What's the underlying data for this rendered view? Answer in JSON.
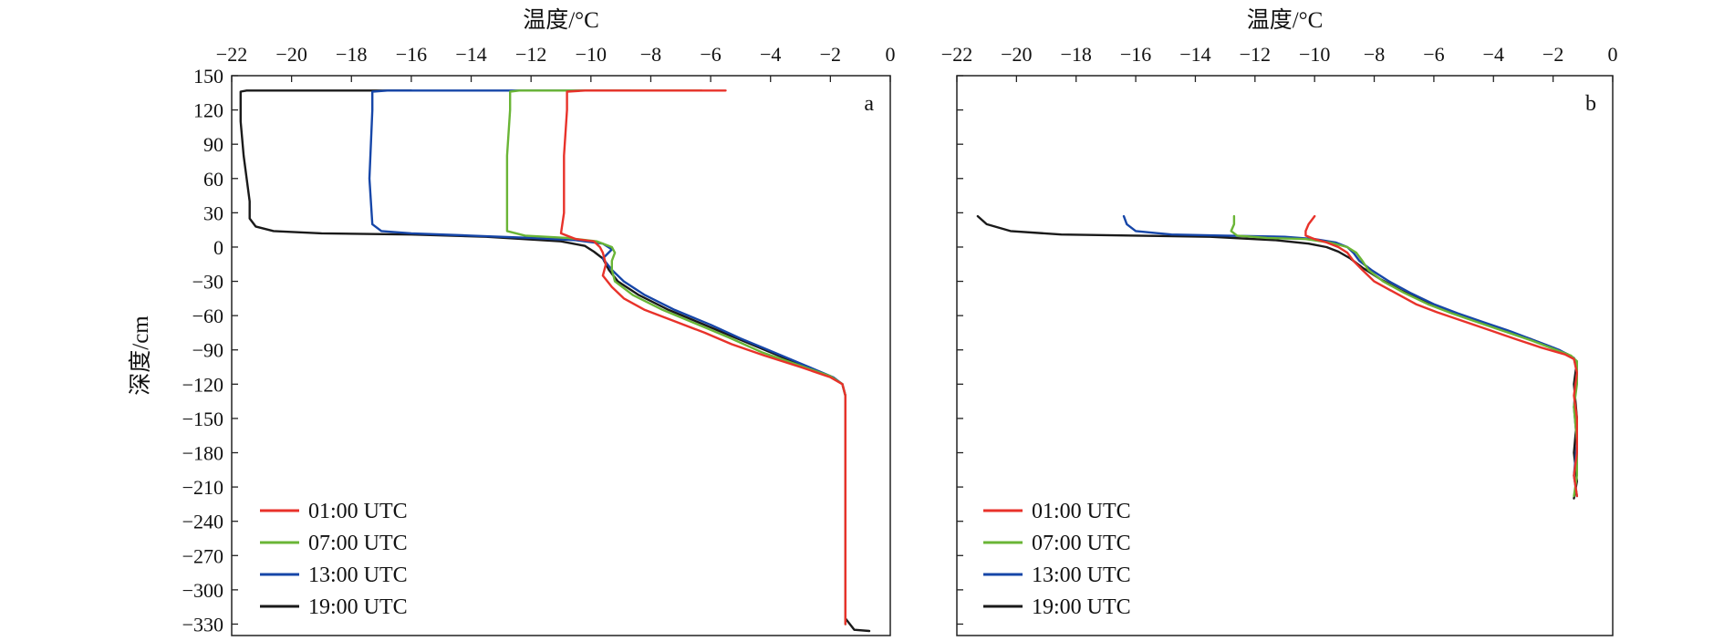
{
  "chart_data": [
    {
      "type": "line",
      "panel_label": "a",
      "xlabel": "温度/°C",
      "ylabel": "深度/cm",
      "xlim": [
        -22,
        0
      ],
      "ylim": [
        -340,
        150
      ],
      "xticks": [
        -22,
        -20,
        -18,
        -16,
        -14,
        -12,
        -10,
        -8,
        -6,
        -4,
        -2,
        0
      ],
      "yticks": [
        150,
        120,
        90,
        60,
        30,
        0,
        -30,
        -60,
        -90,
        -120,
        -150,
        -180,
        -210,
        -240,
        -270,
        -300,
        -330
      ],
      "x_axis_position": "top",
      "legend_position": "bottom-left",
      "legend": [
        "01:00 UTC",
        "07:00 UTC",
        "13:00 UTC",
        "19:00 UTC"
      ],
      "series": [
        {
          "name": "01:00 UTC",
          "color": "#e8322a",
          "points": [
            [
              -5.5,
              137
            ],
            [
              -8.5,
              137
            ],
            [
              -10.2,
              137
            ],
            [
              -10.8,
              136
            ],
            [
              -10.8,
              120
            ],
            [
              -10.9,
              80
            ],
            [
              -10.9,
              30
            ],
            [
              -11.0,
              12
            ],
            [
              -10.5,
              7
            ],
            [
              -9.9,
              5
            ],
            [
              -9.7,
              0
            ],
            [
              -9.6,
              -5
            ],
            [
              -9.5,
              -15
            ],
            [
              -9.6,
              -25
            ],
            [
              -9.3,
              -35
            ],
            [
              -8.9,
              -45
            ],
            [
              -8.2,
              -55
            ],
            [
              -7.2,
              -65
            ],
            [
              -6.2,
              -75
            ],
            [
              -5.3,
              -85
            ],
            [
              -4.2,
              -95
            ],
            [
              -3.0,
              -105
            ],
            [
              -2.0,
              -114
            ],
            [
              -1.6,
              -120
            ],
            [
              -1.5,
              -130
            ],
            [
              -1.5,
              -180
            ],
            [
              -1.5,
              -240
            ],
            [
              -1.5,
              -330
            ]
          ]
        },
        {
          "name": "07:00 UTC",
          "color": "#6ab536",
          "points": [
            [
              -6.3,
              137
            ],
            [
              -9.5,
              137
            ],
            [
              -12.4,
              137
            ],
            [
              -12.7,
              136
            ],
            [
              -12.7,
              120
            ],
            [
              -12.8,
              80
            ],
            [
              -12.8,
              30
            ],
            [
              -12.8,
              14
            ],
            [
              -12.2,
              10
            ],
            [
              -10.8,
              8
            ],
            [
              -9.8,
              5
            ],
            [
              -9.3,
              0
            ],
            [
              -9.2,
              -5
            ],
            [
              -9.3,
              -12
            ],
            [
              -9.3,
              -20
            ],
            [
              -9.2,
              -30
            ],
            [
              -8.6,
              -42
            ],
            [
              -7.6,
              -55
            ],
            [
              -6.5,
              -67
            ],
            [
              -5.4,
              -79
            ],
            [
              -4.3,
              -92
            ],
            [
              -3.1,
              -103
            ],
            [
              -2.0,
              -113
            ],
            [
              -1.6,
              -120
            ],
            [
              -1.5,
              -130
            ],
            [
              -1.5,
              -240
            ],
            [
              -1.5,
              -330
            ]
          ]
        },
        {
          "name": "13:00 UTC",
          "color": "#1646a8",
          "points": [
            [
              -8.7,
              137
            ],
            [
              -12.5,
              137
            ],
            [
              -16.8,
              137
            ],
            [
              -17.3,
              136
            ],
            [
              -17.3,
              120
            ],
            [
              -17.4,
              60
            ],
            [
              -17.3,
              20
            ],
            [
              -17.0,
              14
            ],
            [
              -16.0,
              12
            ],
            [
              -14.0,
              10
            ],
            [
              -12.0,
              8
            ],
            [
              -10.5,
              6
            ],
            [
              -9.6,
              3
            ],
            [
              -9.3,
              -2
            ],
            [
              -9.6,
              -10
            ],
            [
              -9.3,
              -20
            ],
            [
              -8.9,
              -30
            ],
            [
              -8.2,
              -42
            ],
            [
              -7.2,
              -55
            ],
            [
              -6.0,
              -68
            ],
            [
              -5.0,
              -80
            ],
            [
              -3.9,
              -92
            ],
            [
              -2.8,
              -104
            ],
            [
              -1.9,
              -114
            ],
            [
              -1.6,
              -120
            ],
            [
              -1.5,
              -130
            ],
            [
              -1.5,
              -240
            ],
            [
              -1.5,
              -330
            ]
          ]
        },
        {
          "name": "19:00 UTC",
          "color": "#1a1a1a",
          "points": [
            [
              -16.0,
              137
            ],
            [
              -21.5,
              137
            ],
            [
              -21.7,
              136
            ],
            [
              -21.7,
              110
            ],
            [
              -21.6,
              80
            ],
            [
              -21.4,
              40
            ],
            [
              -21.4,
              25
            ],
            [
              -21.2,
              18
            ],
            [
              -20.6,
              14
            ],
            [
              -19.0,
              12
            ],
            [
              -16.0,
              11
            ],
            [
              -13.5,
              9
            ],
            [
              -11.0,
              5
            ],
            [
              -10.2,
              1
            ],
            [
              -9.9,
              -4
            ],
            [
              -9.6,
              -10
            ],
            [
              -9.4,
              -20
            ],
            [
              -9.1,
              -30
            ],
            [
              -8.4,
              -42
            ],
            [
              -7.4,
              -55
            ],
            [
              -6.3,
              -67
            ],
            [
              -5.2,
              -79
            ],
            [
              -4.1,
              -91
            ],
            [
              -3.0,
              -103
            ],
            [
              -2.0,
              -113
            ],
            [
              -1.6,
              -120
            ],
            [
              -1.5,
              -130
            ],
            [
              -1.5,
              -240
            ],
            [
              -1.5,
              -325
            ],
            [
              -1.2,
              -335
            ],
            [
              -0.7,
              -336
            ]
          ]
        }
      ]
    },
    {
      "type": "line",
      "panel_label": "b",
      "xlabel": "温度/°C",
      "ylabel": "",
      "xlim": [
        -22,
        0
      ],
      "ylim": [
        -340,
        150
      ],
      "xticks": [
        -22,
        -20,
        -18,
        -16,
        -14,
        -12,
        -10,
        -8,
        -6,
        -4,
        -2,
        0
      ],
      "yticks": [
        150,
        120,
        90,
        60,
        30,
        0,
        -30,
        -60,
        -90,
        -120,
        -150,
        -180,
        -210,
        -240,
        -270,
        -300,
        -330
      ],
      "x_axis_position": "top",
      "legend_position": "bottom-left",
      "legend": [
        "01:00 UTC",
        "07:00 UTC",
        "13:00 UTC",
        "19:00 UTC"
      ],
      "series": [
        {
          "name": "01:00 UTC",
          "color": "#e8322a",
          "points": [
            [
              -10.0,
              27
            ],
            [
              -10.2,
              20
            ],
            [
              -10.3,
              14
            ],
            [
              -10.3,
              10
            ],
            [
              -10.0,
              7
            ],
            [
              -9.6,
              4
            ],
            [
              -9.2,
              0
            ],
            [
              -8.9,
              -5
            ],
            [
              -8.7,
              -12
            ],
            [
              -8.4,
              -20
            ],
            [
              -8.0,
              -30
            ],
            [
              -7.3,
              -40
            ],
            [
              -6.6,
              -50
            ],
            [
              -5.9,
              -57
            ],
            [
              -5.0,
              -65
            ],
            [
              -4.1,
              -73
            ],
            [
              -3.2,
              -81
            ],
            [
              -2.4,
              -88
            ],
            [
              -1.6,
              -94
            ],
            [
              -1.3,
              -98
            ],
            [
              -1.2,
              -110
            ],
            [
              -1.3,
              -130
            ],
            [
              -1.2,
              -150
            ],
            [
              -1.2,
              -180
            ],
            [
              -1.3,
              -200
            ],
            [
              -1.2,
              -218
            ]
          ]
        },
        {
          "name": "07:00 UTC",
          "color": "#6ab536",
          "points": [
            [
              -12.7,
              27
            ],
            [
              -12.7,
              20
            ],
            [
              -12.8,
              14
            ],
            [
              -12.6,
              10
            ],
            [
              -11.6,
              8
            ],
            [
              -10.3,
              7
            ],
            [
              -9.5,
              4
            ],
            [
              -8.9,
              0
            ],
            [
              -8.6,
              -5
            ],
            [
              -8.4,
              -12
            ],
            [
              -8.2,
              -20
            ],
            [
              -7.7,
              -30
            ],
            [
              -7.0,
              -40
            ],
            [
              -6.2,
              -50
            ],
            [
              -5.4,
              -58
            ],
            [
              -4.5,
              -66
            ],
            [
              -3.6,
              -74
            ],
            [
              -2.7,
              -82
            ],
            [
              -2.0,
              -89
            ],
            [
              -1.4,
              -95
            ],
            [
              -1.2,
              -100
            ],
            [
              -1.2,
              -120
            ],
            [
              -1.3,
              -140
            ],
            [
              -1.2,
              -170
            ],
            [
              -1.2,
              -200
            ],
            [
              -1.3,
              -218
            ]
          ]
        },
        {
          "name": "13:00 UTC",
          "color": "#1646a8",
          "points": [
            [
              -16.4,
              27
            ],
            [
              -16.3,
              20
            ],
            [
              -16.0,
              14
            ],
            [
              -14.8,
              11
            ],
            [
              -13.0,
              10
            ],
            [
              -11.0,
              9
            ],
            [
              -10.0,
              7
            ],
            [
              -9.3,
              4
            ],
            [
              -8.9,
              0
            ],
            [
              -8.7,
              -5
            ],
            [
              -8.5,
              -12
            ],
            [
              -8.1,
              -20
            ],
            [
              -7.5,
              -30
            ],
            [
              -6.8,
              -40
            ],
            [
              -6.0,
              -50
            ],
            [
              -5.2,
              -58
            ],
            [
              -4.3,
              -66
            ],
            [
              -3.4,
              -74
            ],
            [
              -2.6,
              -82
            ],
            [
              -1.8,
              -90
            ],
            [
              -1.3,
              -97
            ],
            [
              -1.2,
              -110
            ],
            [
              -1.3,
              -140
            ],
            [
              -1.2,
              -170
            ],
            [
              -1.3,
              -200
            ],
            [
              -1.2,
              -218
            ]
          ]
        },
        {
          "name": "19:00 UTC",
          "color": "#1a1a1a",
          "points": [
            [
              -21.3,
              27
            ],
            [
              -21.0,
              20
            ],
            [
              -20.2,
              14
            ],
            [
              -18.5,
              11
            ],
            [
              -16.0,
              10
            ],
            [
              -13.5,
              9
            ],
            [
              -11.3,
              6
            ],
            [
              -10.2,
              3
            ],
            [
              -9.6,
              0
            ],
            [
              -9.2,
              -4
            ],
            [
              -8.8,
              -10
            ],
            [
              -8.4,
              -18
            ],
            [
              -7.8,
              -28
            ],
            [
              -7.1,
              -38
            ],
            [
              -6.3,
              -48
            ],
            [
              -5.5,
              -56
            ],
            [
              -4.6,
              -64
            ],
            [
              -3.7,
              -72
            ],
            [
              -2.8,
              -80
            ],
            [
              -2.0,
              -88
            ],
            [
              -1.5,
              -94
            ],
            [
              -1.2,
              -100
            ],
            [
              -1.3,
              -120
            ],
            [
              -1.2,
              -150
            ],
            [
              -1.3,
              -180
            ],
            [
              -1.2,
              -205
            ],
            [
              -1.3,
              -220
            ]
          ]
        }
      ]
    }
  ]
}
